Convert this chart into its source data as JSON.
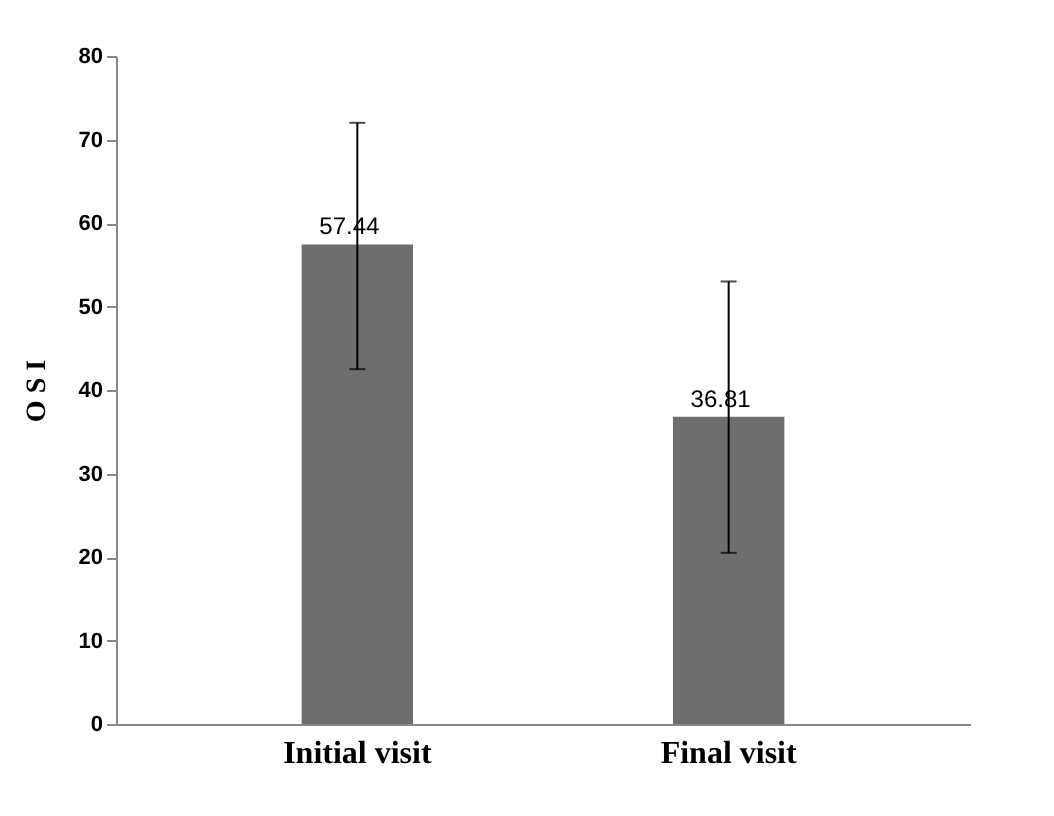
{
  "chart_data": {
    "type": "bar",
    "ylabel": "O S I",
    "categories": [
      "Initial visit",
      "Final visit"
    ],
    "values": [
      57.44,
      36.81
    ],
    "errors": [
      [
        42.5,
        72
      ],
      [
        20.5,
        53
      ]
    ],
    "color": "#6e6e6e",
    "data_labels": true,
    "ylim": [
      0,
      80
    ],
    "yticks": [
      0,
      10,
      20,
      30,
      40,
      50,
      60,
      70,
      80
    ],
    "grid": false
  }
}
